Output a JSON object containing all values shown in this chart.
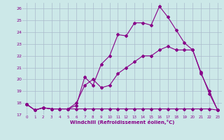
{
  "xlabel": "Windchill (Refroidissement éolien,°C)",
  "bg_color": "#cce8e8",
  "grid_color": "#aabbcc",
  "line_color": "#880088",
  "xlim": [
    -0.5,
    23.5
  ],
  "ylim": [
    17,
    26.5
  ],
  "yticks": [
    17,
    18,
    19,
    20,
    21,
    22,
    23,
    24,
    25,
    26
  ],
  "xticks": [
    0,
    1,
    2,
    3,
    4,
    5,
    6,
    7,
    8,
    9,
    10,
    11,
    12,
    13,
    14,
    15,
    16,
    17,
    18,
    19,
    20,
    21,
    22,
    23
  ],
  "series1_x": [
    0,
    1,
    2,
    3,
    4,
    5,
    6,
    7,
    8,
    9,
    10,
    11,
    12,
    13,
    14,
    15,
    16,
    17,
    18,
    19,
    20,
    21,
    22,
    23
  ],
  "series1_y": [
    17.9,
    17.4,
    17.6,
    17.5,
    17.5,
    17.5,
    17.5,
    17.5,
    17.5,
    17.5,
    17.5,
    17.5,
    17.5,
    17.5,
    17.5,
    17.5,
    17.5,
    17.5,
    17.5,
    17.5,
    17.5,
    17.5,
    17.5,
    17.4
  ],
  "series2_x": [
    0,
    1,
    2,
    3,
    4,
    5,
    6,
    7,
    8,
    9,
    10,
    11,
    12,
    13,
    14,
    15,
    16,
    17,
    18,
    19,
    20,
    21,
    22,
    23
  ],
  "series2_y": [
    17.9,
    17.4,
    17.6,
    17.5,
    17.5,
    17.5,
    18.0,
    19.5,
    20.0,
    19.3,
    19.5,
    20.5,
    21.0,
    21.5,
    22.0,
    22.0,
    22.5,
    22.8,
    22.5,
    22.5,
    22.5,
    20.5,
    19.0,
    17.4
  ],
  "series3_x": [
    0,
    1,
    2,
    3,
    4,
    5,
    6,
    7,
    8,
    9,
    10,
    11,
    12,
    13,
    14,
    15,
    16,
    17,
    18,
    19,
    20,
    21,
    22,
    23
  ],
  "series3_y": [
    17.9,
    17.4,
    17.6,
    17.5,
    17.5,
    17.5,
    17.8,
    20.2,
    19.5,
    21.3,
    22.0,
    23.8,
    23.7,
    24.8,
    24.8,
    24.6,
    26.2,
    25.3,
    24.2,
    23.1,
    22.5,
    20.6,
    18.8,
    17.4
  ],
  "marker": "D",
  "markersize": 2.0,
  "linewidth": 0.8
}
